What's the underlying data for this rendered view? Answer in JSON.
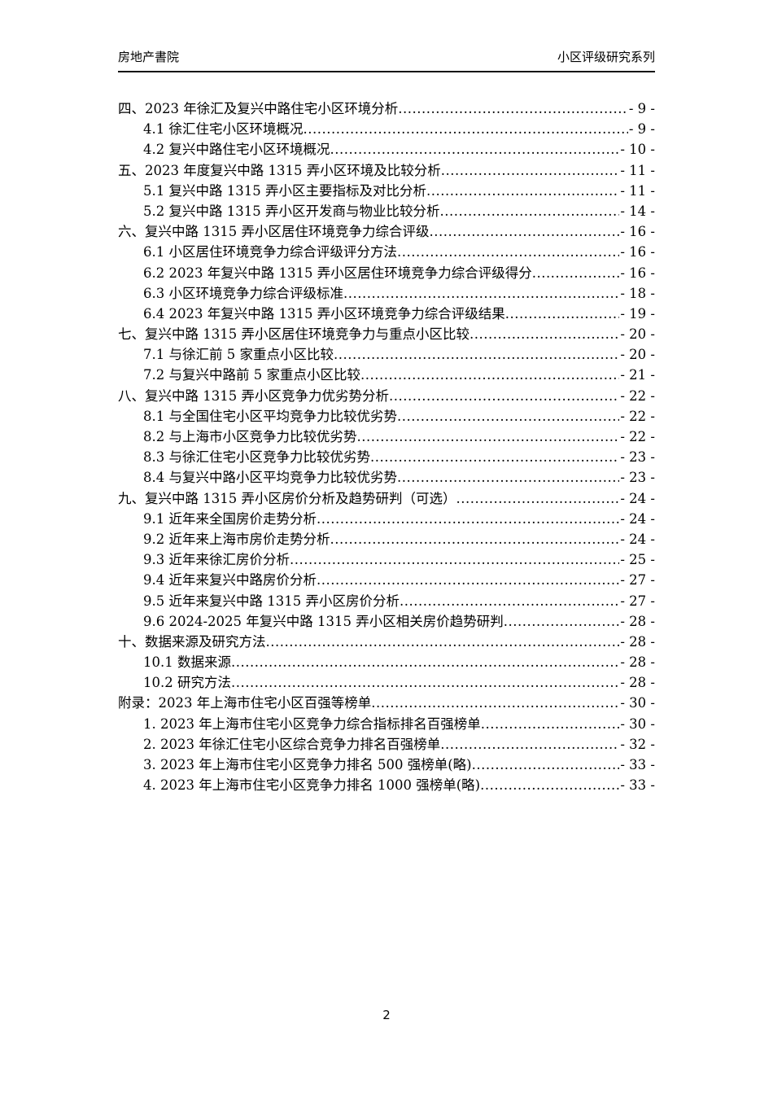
{
  "header": {
    "left": "房地产書院",
    "right": "小区评级研究系列"
  },
  "toc": {
    "entries": [
      {
        "level": 1,
        "title": "四、2023 年徐汇及复兴中路住宅小区环境分析",
        "page": "- 9 -"
      },
      {
        "level": 2,
        "title": "4.1 徐汇住宅小区环境概况",
        "page": "- 9 -"
      },
      {
        "level": 2,
        "title": "4.2 复兴中路住宅小区环境概况",
        "page": "- 10 -"
      },
      {
        "level": 1,
        "title": "五、2023 年度复兴中路 1315 弄小区环境及比较分析",
        "page": "- 11 -"
      },
      {
        "level": 2,
        "title": "5.1 复兴中路 1315 弄小区主要指标及对比分析",
        "page": "- 11 -"
      },
      {
        "level": 2,
        "title": "5.2 复兴中路 1315 弄小区开发商与物业比较分析",
        "page": "- 14 -"
      },
      {
        "level": 1,
        "title": "六、复兴中路 1315 弄小区居住环境竞争力综合评级",
        "page": "- 16 -"
      },
      {
        "level": 2,
        "title": "6.1 小区居住环境竞争力综合评级评分方法",
        "page": "- 16 -"
      },
      {
        "level": 2,
        "title": "6.2 2023 年复兴中路 1315 弄小区居住环境竞争力综合评级得分",
        "page": "- 16 -"
      },
      {
        "level": 2,
        "title": "6.3 小区环境竞争力综合评级标准",
        "page": "- 18 -"
      },
      {
        "level": 2,
        "title": "6.4 2023 年复兴中路 1315 弄小区环境竞争力综合评级结果",
        "page": "- 19 -"
      },
      {
        "level": 1,
        "title": "七、复兴中路 1315 弄小区居住环境竞争力与重点小区比较",
        "page": "- 20 -"
      },
      {
        "level": 2,
        "title": "7.1 与徐汇前 5 家重点小区比较",
        "page": "- 20 -"
      },
      {
        "level": 2,
        "title": "7.2 与复兴中路前 5 家重点小区比较",
        "page": "- 21 -"
      },
      {
        "level": 1,
        "title": "八、复兴中路 1315 弄小区竞争力优劣势分析",
        "page": "- 22 -"
      },
      {
        "level": 2,
        "title": "8.1 与全国住宅小区平均竞争力比较优劣势",
        "page": "- 22 -"
      },
      {
        "level": 2,
        "title": "8.2 与上海市小区竞争力比较优劣势",
        "page": "- 22 -"
      },
      {
        "level": 2,
        "title": "8.3 与徐汇住宅小区竞争力比较优劣势",
        "page": "- 23 -"
      },
      {
        "level": 2,
        "title": "8.4 与复兴中路小区平均竞争力比较优劣势",
        "page": "- 23 -"
      },
      {
        "level": 1,
        "title": "九、复兴中路 1315 弄小区房价分析及趋势研判（可选）",
        "page": "- 24 -"
      },
      {
        "level": 2,
        "title": "9.1 近年来全国房价走势分析",
        "page": "- 24 -"
      },
      {
        "level": 2,
        "title": "9.2 近年来上海市房价走势分析",
        "page": "- 24 -"
      },
      {
        "level": 2,
        "title": "9.3 近年来徐汇房价分析",
        "page": "- 25 -"
      },
      {
        "level": 2,
        "title": "9.4 近年来复兴中路房价分析",
        "page": "- 27 -"
      },
      {
        "level": 2,
        "title": "9.5 近年来复兴中路 1315 弄小区房价分析",
        "page": "- 27 -"
      },
      {
        "level": 2,
        "title": "9.6 2024-2025 年复兴中路 1315 弄小区相关房价趋势研判",
        "page": "- 28 -"
      },
      {
        "level": 1,
        "title": "十、数据来源及研究方法",
        "page": "- 28 -"
      },
      {
        "level": 2,
        "title": "10.1 数据来源",
        "page": "- 28 -"
      },
      {
        "level": 2,
        "title": "10.2 研究方法",
        "page": "- 28 -"
      },
      {
        "level": 1,
        "title": "附录：2023 年上海市住宅小区百强等榜单",
        "page": "- 30 -"
      },
      {
        "level": 2,
        "title": "1. 2023 年上海市住宅小区竞争力综合指标排名百强榜单",
        "page": "- 30 -"
      },
      {
        "level": 2,
        "title": "2. 2023 年徐汇住宅小区综合竞争力排名百强榜单",
        "page": "- 32 -"
      },
      {
        "level": 2,
        "title": "3. 2023 年上海市住宅小区竞争力排名 500 强榜单(略)",
        "page": "- 33 -"
      },
      {
        "level": 2,
        "title": "4. 2023 年上海市住宅小区竞争力排名 1000 强榜单(略)",
        "page": "- 33 -"
      }
    ]
  },
  "footer": {
    "page_number": "2"
  }
}
